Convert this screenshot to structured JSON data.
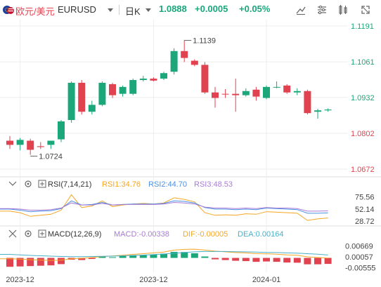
{
  "header": {
    "pair_cn": "欧元/美元",
    "pair_code": "EURUSD",
    "period": "日K",
    "price": "1.0888",
    "change": "+0.0005",
    "change_pct": "+0.05%",
    "tools": [
      "draw-line-icon",
      "settings-sliders-icon",
      "indicator-icon",
      "fullscreen-icon"
    ]
  },
  "colors": {
    "up": "#1ba77a",
    "down": "#e0424f",
    "rsi1": "#f5a623",
    "rsi2": "#4a90e2",
    "rsi3": "#a97ad8",
    "macd_line": "#f5a623",
    "dea_line": "#4ab0c8",
    "price_label": "#1ba77a",
    "low_label": "#e0424f",
    "grid": "#eeeeee"
  },
  "main_axis": {
    "ticks": [
      "1.1191",
      "1.1061",
      "1.0932",
      "1.0802",
      "1.0672"
    ],
    "tick_values": [
      1.1191,
      1.1061,
      1.0932,
      1.0802,
      1.0672
    ],
    "tick_colors": [
      "up",
      "up",
      "up",
      "down",
      "down"
    ],
    "ylim": [
      1.0672,
      1.1191
    ]
  },
  "annotations": {
    "high": "1.1139",
    "low": "1.0724"
  },
  "chart_data": {
    "type": "candlestick",
    "candles": [
      {
        "o": 1.0775,
        "h": 1.0792,
        "l": 1.0745,
        "c": 1.076
      },
      {
        "o": 1.076,
        "h": 1.0785,
        "l": 1.074,
        "c": 1.0778
      },
      {
        "o": 1.0775,
        "h": 1.0782,
        "l": 1.0724,
        "c": 1.0742
      },
      {
        "o": 1.0755,
        "h": 1.077,
        "l": 1.0745,
        "c": 1.0752
      },
      {
        "o": 1.076,
        "h": 1.0775,
        "l": 1.0745,
        "c": 1.0775
      },
      {
        "o": 1.078,
        "h": 1.085,
        "l": 1.077,
        "c": 1.0845
      },
      {
        "o": 1.085,
        "h": 1.099,
        "l": 1.084,
        "c": 1.0985
      },
      {
        "o": 1.0985,
        "h": 1.0995,
        "l": 1.087,
        "c": 1.088
      },
      {
        "o": 1.088,
        "h": 1.092,
        "l": 1.087,
        "c": 1.0905
      },
      {
        "o": 1.0905,
        "h": 1.099,
        "l": 1.09,
        "c": 1.0985
      },
      {
        "o": 1.098,
        "h": 1.0985,
        "l": 1.093,
        "c": 1.094
      },
      {
        "o": 1.0945,
        "h": 1.0975,
        "l": 1.0935,
        "c": 1.097
      },
      {
        "o": 1.0945,
        "h": 1.1,
        "l": 1.094,
        "c": 1.0995
      },
      {
        "o": 1.0995,
        "h": 1.101,
        "l": 1.099,
        "c": 1.1
      },
      {
        "o": 1.1,
        "h": 1.1005,
        "l": 1.099,
        "c": 1.0993
      },
      {
        "o": 1.1,
        "h": 1.1025,
        "l": 1.0995,
        "c": 1.102
      },
      {
        "o": 1.1025,
        "h": 1.111,
        "l": 1.1015,
        "c": 1.11
      },
      {
        "o": 1.11,
        "h": 1.1139,
        "l": 1.106,
        "c": 1.1075
      },
      {
        "o": 1.1065,
        "h": 1.107,
        "l": 1.1045,
        "c": 1.105
      },
      {
        "o": 1.105,
        "h": 1.106,
        "l": 1.0945,
        "c": 1.095
      },
      {
        "o": 1.095,
        "h": 1.097,
        "l": 1.0895,
        "c": 1.093
      },
      {
        "o": 1.0945,
        "h": 1.0962,
        "l": 1.093,
        "c": 1.0943
      },
      {
        "o": 1.0945,
        "h": 1.1,
        "l": 1.088,
        "c": 1.094
      },
      {
        "o": 1.094,
        "h": 1.0965,
        "l": 1.0935,
        "c": 1.0955
      },
      {
        "o": 1.096,
        "h": 1.097,
        "l": 1.092,
        "c": 1.0935
      },
      {
        "o": 1.093,
        "h": 1.0975,
        "l": 1.0925,
        "c": 1.097
      },
      {
        "o": 1.097,
        "h": 1.099,
        "l": 1.0965,
        "c": 1.097
      },
      {
        "o": 1.0975,
        "h": 1.098,
        "l": 1.0945,
        "c": 1.095
      },
      {
        "o": 1.095,
        "h": 1.0965,
        "l": 1.094,
        "c": 1.0955
      },
      {
        "o": 1.0955,
        "h": 1.096,
        "l": 1.087,
        "c": 1.0875
      },
      {
        "o": 1.088,
        "h": 1.089,
        "l": 1.0855,
        "c": 1.0885
      },
      {
        "o": 1.0885,
        "h": 1.0892,
        "l": 1.088,
        "c": 1.0888
      }
    ],
    "x_labels": [
      {
        "label": "2023-12",
        "index": 1
      },
      {
        "label": "2023-12",
        "index": 14
      },
      {
        "label": "2024-01",
        "index": 25
      }
    ],
    "ylim": [
      1.0672,
      1.1191
    ]
  },
  "rsi": {
    "label": "RSI(7,14,21)",
    "rsi1_label": "RSI1:34.76",
    "rsi2_label": "RSI2:44.70",
    "rsi3_label": "RSI3:48.53",
    "ticks": [
      "75.56",
      "52.14",
      "28.72"
    ],
    "tick_values": [
      75.56,
      52.14,
      28.72
    ],
    "ylim": [
      22,
      82
    ],
    "rsi1": [
      48,
      45,
      38,
      40,
      42,
      50,
      80,
      55,
      58,
      68,
      57,
      60,
      62,
      63,
      62,
      64,
      74,
      71,
      66,
      45,
      40,
      41,
      40,
      43,
      42,
      47,
      46,
      45,
      44,
      30,
      33,
      34.76
    ],
    "rsi2": [
      52,
      50,
      47,
      48,
      49,
      53,
      68,
      60,
      61,
      65,
      60,
      61,
      62,
      62,
      62,
      63,
      68,
      67,
      64,
      55,
      52,
      52,
      51,
      52,
      51,
      54,
      53,
      52,
      51,
      44,
      44,
      44.7
    ],
    "rsi3": [
      53,
      52,
      50,
      50,
      51,
      54,
      64,
      60,
      60,
      63,
      60,
      61,
      61,
      61,
      61,
      62,
      65,
      64,
      62,
      56,
      54,
      54,
      53,
      54,
      53,
      55,
      54,
      54,
      53,
      48,
      48,
      48.53
    ]
  },
  "macd": {
    "label": "MACD(12,26,9)",
    "macd_label": "MACD:-0.00338",
    "dif_label": "DIF:-0.00005",
    "dea_label": "DEA:0.00164",
    "ticks": [
      "0.00669",
      "0.00057",
      "-0.00555"
    ],
    "tick_values": [
      0.00669,
      0.00057,
      -0.00555
    ],
    "ylim": [
      -0.0065,
      0.0085
    ],
    "macd": [
      -0.005,
      -0.0048,
      -0.0046,
      -0.0044,
      -0.0042,
      -0.0035,
      -0.001,
      -0.0012,
      -0.0006,
      0.0008,
      0.0004,
      0.001,
      0.0014,
      0.0016,
      0.0018,
      0.0024,
      0.0034,
      0.0033,
      0.0026,
      0.0008,
      -0.0008,
      -0.0012,
      -0.0016,
      -0.0018,
      -0.0022,
      -0.002,
      -0.0022,
      -0.0026,
      -0.0027,
      -0.0036,
      -0.0036,
      -0.00338
    ],
    "dif": [
      -0.0005,
      -0.0007,
      -0.001,
      -0.0012,
      -0.0014,
      -0.0013,
      -0.0005,
      -0.0002,
      0.0002,
      0.0008,
      0.0011,
      0.0015,
      0.002,
      0.0024,
      0.0028,
      0.0033,
      0.0044,
      0.0048,
      0.0049,
      0.0044,
      0.0038,
      0.0034,
      0.003,
      0.0028,
      0.0024,
      0.0023,
      0.0021,
      0.0017,
      0.0015,
      0.0006,
      0.0002,
      -5e-05
    ],
    "dea": [
      0.002,
      0.0017,
      0.0014,
      0.0012,
      0.001,
      0.0008,
      0.0007,
      0.0007,
      0.0008,
      0.0009,
      0.001,
      0.0012,
      0.0014,
      0.0016,
      0.0019,
      0.0022,
      0.0026,
      0.003,
      0.0034,
      0.0036,
      0.0036,
      0.0036,
      0.0035,
      0.0034,
      0.0033,
      0.0031,
      0.003,
      0.0028,
      0.0027,
      0.0024,
      0.0021,
      0.00164
    ]
  }
}
